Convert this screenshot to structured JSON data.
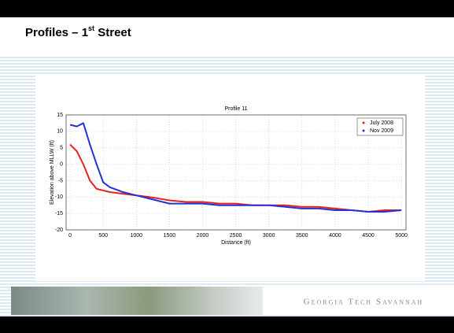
{
  "slide_title": [
    "Profiles – 1",
    "st",
    " Street"
  ],
  "footer": "Georgia Tech Savannah",
  "chart_data": {
    "type": "line",
    "title": "Profile 11",
    "xlabel": "Distance (ft)",
    "ylabel": "Elevation above MLLW (ft)",
    "x": [
      0,
      100,
      200,
      300,
      400,
      500,
      600,
      800,
      1000,
      1200,
      1500,
      1750,
      2000,
      2250,
      2500,
      2750,
      3000,
      3250,
      3500,
      3750,
      4000,
      4250,
      4500,
      4750,
      5000
    ],
    "series": [
      {
        "name": "July 2008",
        "color": "#e8221c",
        "values": [
          6,
          4,
          0,
          -5,
          -7.5,
          -8,
          -8.5,
          -9,
          -9.5,
          -10,
          -11,
          -11.5,
          -11.5,
          -12,
          -12,
          -12.5,
          -12.5,
          -12.5,
          -13,
          -13,
          -13.5,
          -14,
          -14.5,
          -14,
          -14
        ]
      },
      {
        "name": "Nov 2009",
        "color": "#2233d6",
        "values": [
          12,
          11.5,
          12.5,
          6,
          0,
          -5.5,
          -7,
          -8.5,
          -9.5,
          -10.5,
          -12,
          -12,
          -12,
          -12.5,
          -12.5,
          -12.5,
          -12.5,
          -13,
          -13.5,
          -13.5,
          -14,
          -14,
          -14.5,
          -14.5,
          -14
        ]
      }
    ],
    "xlim": [
      -60,
      5070
    ],
    "ylim": [
      -20,
      15
    ],
    "xticks": [
      0,
      500,
      1000,
      1500,
      2000,
      2500,
      3000,
      3500,
      4000,
      4500,
      5000
    ],
    "yticks": [
      -20,
      -15,
      -10,
      -5,
      0,
      5,
      10,
      15
    ],
    "grid": true,
    "legend": "upper right"
  }
}
